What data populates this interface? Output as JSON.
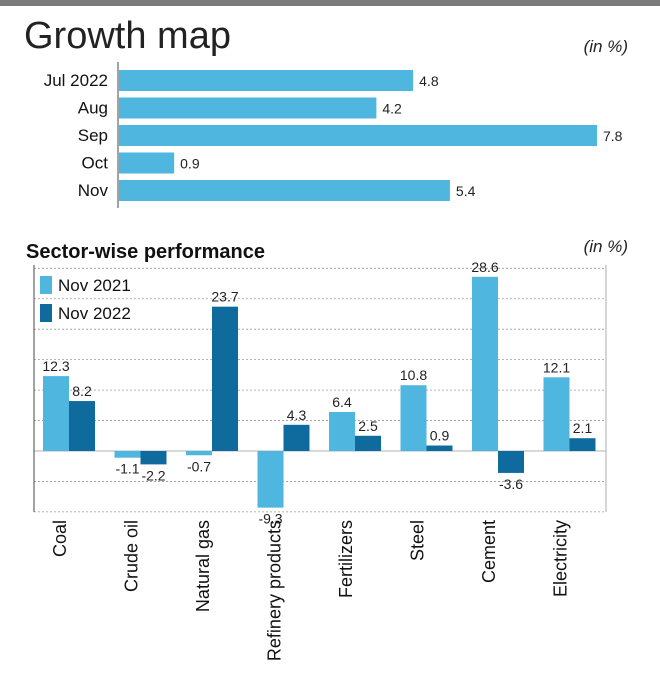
{
  "chart_data": [
    {
      "type": "bar",
      "orientation": "horizontal",
      "title": "Growth map",
      "unit": "(in %)",
      "categories": [
        "Jul 2022",
        "Aug",
        "Sep",
        "Oct",
        "Nov"
      ],
      "values": [
        4.8,
        4.2,
        7.8,
        0.9,
        5.4
      ],
      "xlim": [
        0,
        7.8
      ],
      "grid": false,
      "color": "#4fb6df"
    },
    {
      "type": "bar",
      "title": "Sector-wise performance",
      "unit": "(in %)",
      "categories": [
        "Coal",
        "Crude oil",
        "Natural gas",
        "Refinery products",
        "Fertilizers",
        "Steel",
        "Cement",
        "Electricity"
      ],
      "series": [
        {
          "name": "Nov 2021",
          "color": "#4fb6df",
          "values": [
            12.3,
            -1.1,
            -0.7,
            -9.3,
            6.4,
            10.8,
            28.6,
            12.1
          ]
        },
        {
          "name": "Nov 2022",
          "color": "#0f6b9e",
          "values": [
            8.2,
            -2.2,
            23.7,
            4.3,
            2.5,
            0.9,
            -3.6,
            2.1
          ]
        }
      ],
      "ylim": [
        -10,
        30
      ],
      "grid": true,
      "legend_position": "top-left"
    }
  ]
}
